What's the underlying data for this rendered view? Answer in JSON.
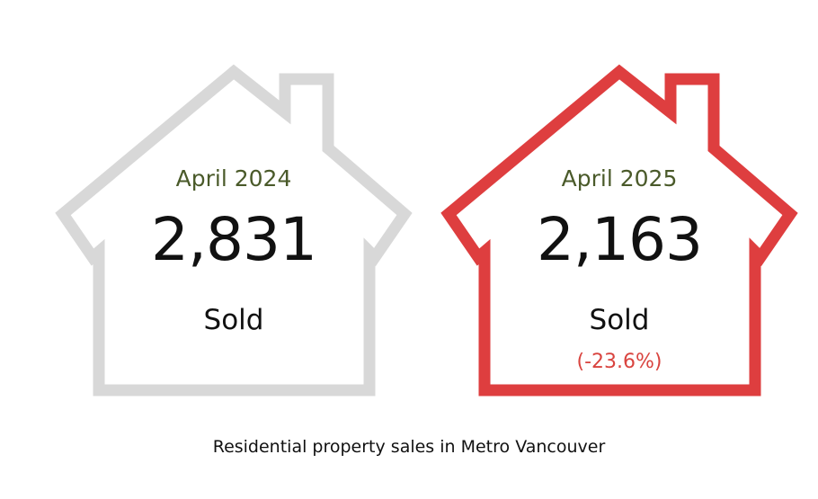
{
  "colors": {
    "previous_outline": "#d8d8d8",
    "current_outline": "#de3e3f",
    "period_text": "#4a5a2a",
    "change_text": "#d9443f"
  },
  "previous": {
    "period": "April 2024",
    "count": "2,831",
    "label": "Sold",
    "icon": "house-outline-icon"
  },
  "current": {
    "period": "April 2025",
    "count": "2,163",
    "label": "Sold",
    "change": "(-23.6%)",
    "icon": "house-outline-icon"
  },
  "caption": "Residential property sales in Metro Vancouver"
}
